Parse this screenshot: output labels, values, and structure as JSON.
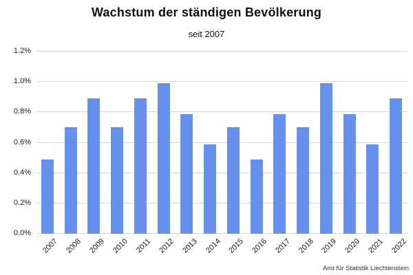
{
  "chart_data": {
    "type": "bar",
    "title": "Wachstum der ständigen Bevölkerung",
    "subtitle": "seit 2007",
    "categories": [
      "2007",
      "2008",
      "2009",
      "2010",
      "2011",
      "2012",
      "2013",
      "2014",
      "2015",
      "2016",
      "2017",
      "2018",
      "2019",
      "2020",
      "2021",
      "2022"
    ],
    "values": [
      0.49,
      0.7,
      0.89,
      0.7,
      0.89,
      0.99,
      0.79,
      0.59,
      0.7,
      0.49,
      0.79,
      0.7,
      0.99,
      0.79,
      0.59,
      0.89
    ],
    "xlabel": "",
    "ylabel": "",
    "ylim": [
      0,
      1.2
    ],
    "yticks": [
      0,
      0.2,
      0.4,
      0.6,
      0.8,
      1.0,
      1.2
    ],
    "ytick_suffix": "%",
    "grid": true,
    "legend": false,
    "bar_color": "#6590ee",
    "grid_color": "#d9d9d9",
    "source": "Amt für Statistik Liechtenstein"
  }
}
